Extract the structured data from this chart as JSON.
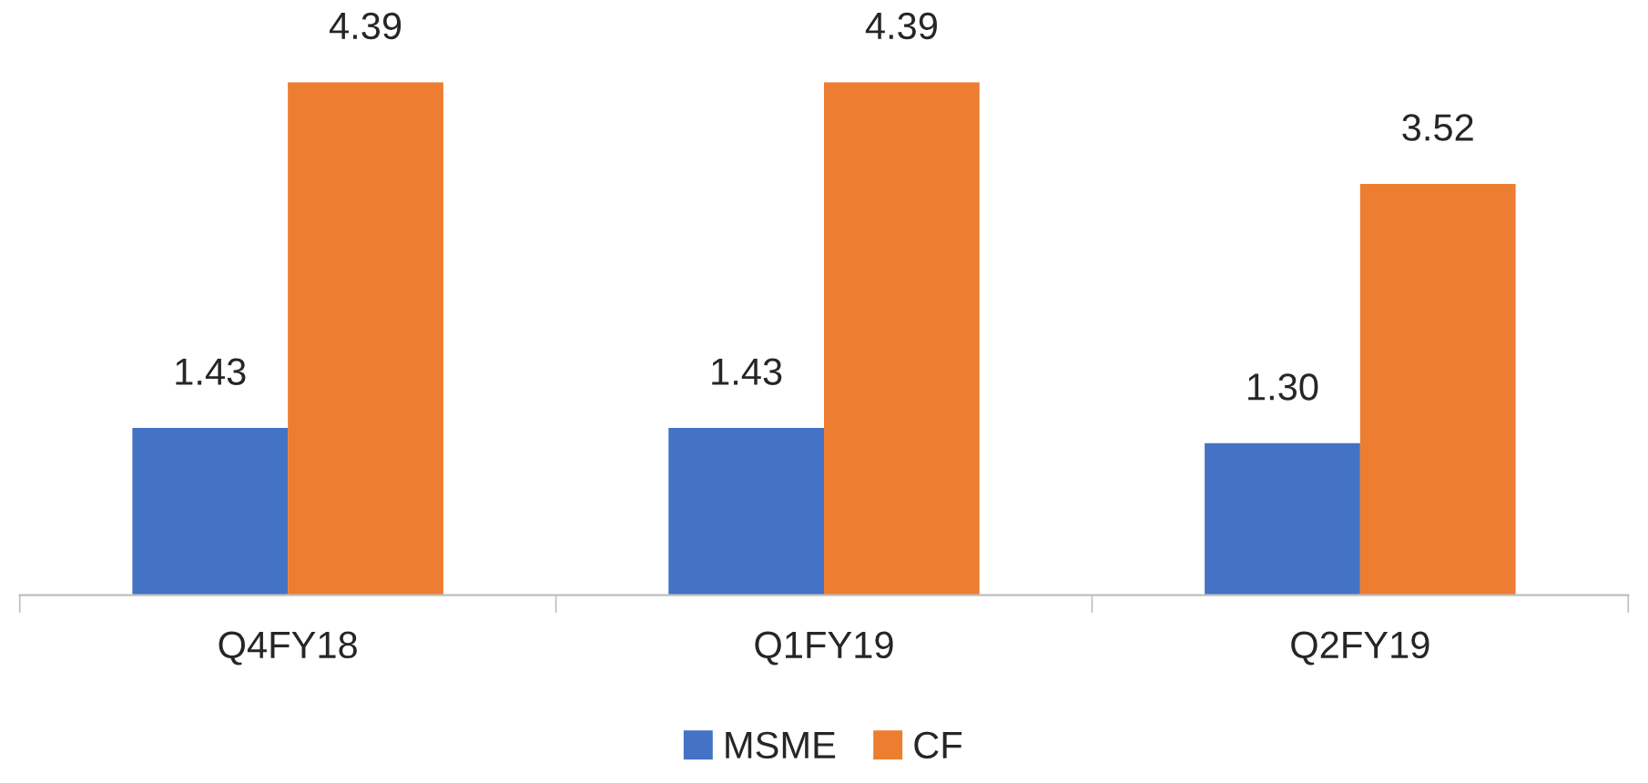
{
  "chart_data": {
    "type": "bar",
    "categories": [
      "Q4FY18",
      "Q1FY19",
      "Q2FY19"
    ],
    "series": [
      {
        "name": "MSME",
        "color": "#4472c4",
        "values": [
          1.43,
          1.43,
          1.3
        ],
        "value_labels": [
          "1.43",
          "1.43",
          "1.30"
        ]
      },
      {
        "name": "CF",
        "color": "#ed7d31",
        "values": [
          4.39,
          4.39,
          3.52
        ],
        "value_labels": [
          "4.39",
          "4.39",
          "3.52"
        ]
      }
    ],
    "legend": "bottom",
    "grid": false
  }
}
